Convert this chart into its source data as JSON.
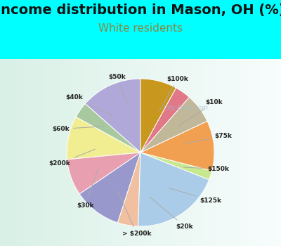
{
  "title": "Income distribution in Mason, OH (%)",
  "subtitle": "White residents",
  "background_cyan": "#00FFFF",
  "background_chart": "#d8f0e8",
  "labels": [
    "$100k",
    "$10k",
    "$75k",
    "$150k",
    "$125k",
    "$20k",
    "> $200k",
    "$30k",
    "$200k",
    "$60k",
    "$40k",
    "$50k"
  ],
  "sizes": [
    13.5,
    3.5,
    9.5,
    8.0,
    10.5,
    4.5,
    19.5,
    2.0,
    11.0,
    6.5,
    3.5,
    8.0
  ],
  "colors": [
    "#b0a8d8",
    "#a8c8a0",
    "#f0ee90",
    "#e8a0b0",
    "#9898cc",
    "#f0c0a0",
    "#aacce8",
    "#c8e890",
    "#f0a050",
    "#c0b898",
    "#e07888",
    "#c8981e"
  ],
  "startangle": 90,
  "title_fontsize": 14,
  "subtitle_fontsize": 11,
  "subtitle_color": "#888844",
  "watermark": "City-Data.com"
}
